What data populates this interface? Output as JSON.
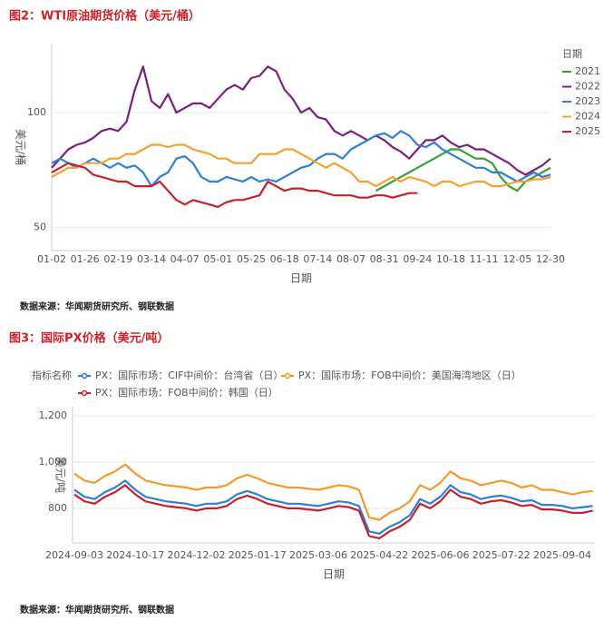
{
  "chart_data": [
    {
      "type": "line",
      "title": "图2：WTI原油期货价格（美元/桶）",
      "y_label": "美元/桶",
      "x_label": "日期",
      "legend_title": "日期",
      "source": "数据来源：华闻期货研究所、钢联数据",
      "categories": [
        "01-02",
        null,
        null,
        null,
        "01-26",
        null,
        null,
        null,
        "02-19",
        null,
        null,
        null,
        "03-14",
        null,
        null,
        null,
        "04-07",
        null,
        null,
        null,
        "05-01",
        null,
        null,
        null,
        "05-25",
        null,
        null,
        null,
        "06-18",
        null,
        null,
        null,
        "07-14",
        null,
        null,
        null,
        "08-07",
        null,
        null,
        null,
        "08-31",
        null,
        null,
        null,
        "09-24",
        null,
        null,
        null,
        "10-18",
        null,
        null,
        null,
        "11-11",
        null,
        null,
        null,
        "12-05",
        null,
        null,
        null,
        "12-30"
      ],
      "ylim": [
        40,
        130
      ],
      "yticks": [
        50,
        100
      ],
      "grid": true,
      "series": [
        {
          "name": "2021",
          "color": "#3a9e32",
          "values": [
            null,
            null,
            null,
            null,
            null,
            null,
            null,
            null,
            null,
            null,
            null,
            null,
            null,
            null,
            null,
            null,
            null,
            null,
            null,
            null,
            null,
            null,
            null,
            null,
            null,
            null,
            null,
            null,
            null,
            null,
            null,
            null,
            null,
            null,
            null,
            null,
            null,
            null,
            null,
            66,
            68,
            70,
            72,
            74,
            76,
            78,
            80,
            82,
            84,
            84,
            82,
            80,
            80,
            78,
            72,
            68,
            66,
            70,
            72,
            74,
            76
          ]
        },
        {
          "name": "2022",
          "color": "#7b1f7e",
          "values": [
            76,
            80,
            84,
            86,
            87,
            89,
            92,
            93,
            92,
            96,
            110,
            120,
            105,
            102,
            108,
            100,
            102,
            104,
            104,
            102,
            106,
            110,
            112,
            110,
            115,
            116,
            120,
            118,
            110,
            106,
            100,
            102,
            98,
            97,
            92,
            90,
            92,
            90,
            88,
            90,
            88,
            85,
            83,
            80,
            84,
            88,
            88,
            90,
            87,
            85,
            86,
            84,
            84,
            82,
            80,
            78,
            75,
            73,
            75,
            77,
            80
          ]
        },
        {
          "name": "2023",
          "color": "#2e7fd6",
          "values": [
            78,
            80,
            78,
            76,
            78,
            80,
            78,
            76,
            78,
            76,
            77,
            74,
            68,
            72,
            74,
            80,
            81,
            78,
            72,
            70,
            70,
            72,
            71,
            70,
            72,
            70,
            71,
            70,
            72,
            74,
            76,
            77,
            80,
            82,
            82,
            80,
            84,
            86,
            88,
            90,
            91,
            89,
            92,
            90,
            86,
            85,
            87,
            84,
            82,
            80,
            78,
            76,
            76,
            74,
            74,
            72,
            70,
            72,
            74,
            72,
            73
          ]
        },
        {
          "name": "2024",
          "color": "#f5a030",
          "values": [
            72,
            74,
            76,
            76,
            78,
            78,
            78,
            80,
            80,
            82,
            82,
            84,
            86,
            86,
            85,
            86,
            86,
            84,
            83,
            82,
            80,
            80,
            78,
            78,
            78,
            82,
            82,
            82,
            84,
            84,
            82,
            80,
            78,
            76,
            78,
            76,
            74,
            70,
            70,
            68,
            70,
            72,
            70,
            72,
            71,
            70,
            68,
            70,
            70,
            68,
            69,
            70,
            70,
            68,
            68,
            69,
            70,
            70,
            71,
            71,
            72
          ]
        },
        {
          "name": "2025",
          "color": "#c8202a",
          "values": [
            74,
            76,
            78,
            77,
            76,
            73,
            72,
            71,
            70,
            70,
            68,
            68,
            68,
            70,
            66,
            62,
            60,
            62,
            61,
            60,
            59,
            61,
            62,
            62,
            63,
            64,
            70,
            68,
            66,
            67,
            67,
            66,
            66,
            65,
            64,
            64,
            64,
            63,
            63,
            64,
            64,
            63,
            64,
            65,
            65,
            null,
            null,
            null,
            null,
            null,
            null,
            null,
            null,
            null,
            null,
            null,
            null,
            null,
            null,
            null,
            null
          ]
        }
      ]
    },
    {
      "type": "line",
      "title": "图3：国际PX价格（美元/吨）",
      "y_label": "美元/吨",
      "x_label": "日期",
      "legend_title": "指标名称",
      "source": "数据来源：华闻期货研究所、钢联数据",
      "categories": [
        "2024-09-03",
        null,
        null,
        null,
        null,
        null,
        "2024-10-17",
        null,
        null,
        null,
        null,
        null,
        "2024-12-02",
        null,
        null,
        null,
        null,
        null,
        "2025-01-17",
        null,
        null,
        null,
        null,
        null,
        "2025-03-06",
        null,
        null,
        null,
        null,
        null,
        "2025-04-22",
        null,
        null,
        null,
        null,
        null,
        "2025-06-06",
        null,
        null,
        null,
        null,
        null,
        "2025-07-22",
        null,
        null,
        null,
        null,
        null,
        "2025-09-04",
        null,
        null,
        null
      ],
      "ylim": [
        650,
        1240
      ],
      "yticks": [
        800,
        {
          "value": 1000,
          "label": "1,000"
        },
        {
          "value": 1200,
          "label": "1,200"
        }
      ],
      "grid": true,
      "series": [
        {
          "name": "PX：国际市场：CIF中间价：台湾省（日）",
          "color": "#2e7fd6",
          "values": [
            880,
            850,
            840,
            870,
            890,
            920,
            880,
            850,
            840,
            830,
            825,
            820,
            810,
            820,
            820,
            830,
            860,
            875,
            860,
            840,
            830,
            820,
            820,
            815,
            810,
            820,
            830,
            825,
            810,
            700,
            690,
            720,
            740,
            770,
            840,
            820,
            850,
            900,
            870,
            860,
            840,
            850,
            855,
            845,
            830,
            835,
            815,
            815,
            810,
            800,
            805,
            810
          ]
        },
        {
          "name": "PX：国际市场：FOB中间价：美国海湾地区（日）",
          "color": "#f59a2a",
          "values": [
            950,
            920,
            910,
            940,
            960,
            990,
            950,
            920,
            910,
            900,
            895,
            890,
            880,
            890,
            890,
            900,
            930,
            945,
            930,
            910,
            900,
            890,
            890,
            885,
            880,
            890,
            900,
            895,
            880,
            760,
            750,
            780,
            800,
            830,
            900,
            880,
            910,
            960,
            930,
            920,
            900,
            910,
            920,
            910,
            890,
            900,
            880,
            880,
            870,
            860,
            870,
            875
          ]
        },
        {
          "name": "PX：国际市场：FOB中间价：韩国（日）",
          "color": "#c8202a",
          "values": [
            860,
            830,
            820,
            850,
            870,
            900,
            860,
            830,
            820,
            810,
            805,
            800,
            790,
            800,
            800,
            810,
            840,
            855,
            840,
            820,
            810,
            800,
            800,
            795,
            790,
            800,
            810,
            805,
            790,
            680,
            670,
            700,
            720,
            750,
            820,
            800,
            830,
            880,
            850,
            840,
            820,
            830,
            835,
            825,
            810,
            815,
            795,
            795,
            790,
            780,
            780,
            790
          ]
        }
      ]
    }
  ]
}
